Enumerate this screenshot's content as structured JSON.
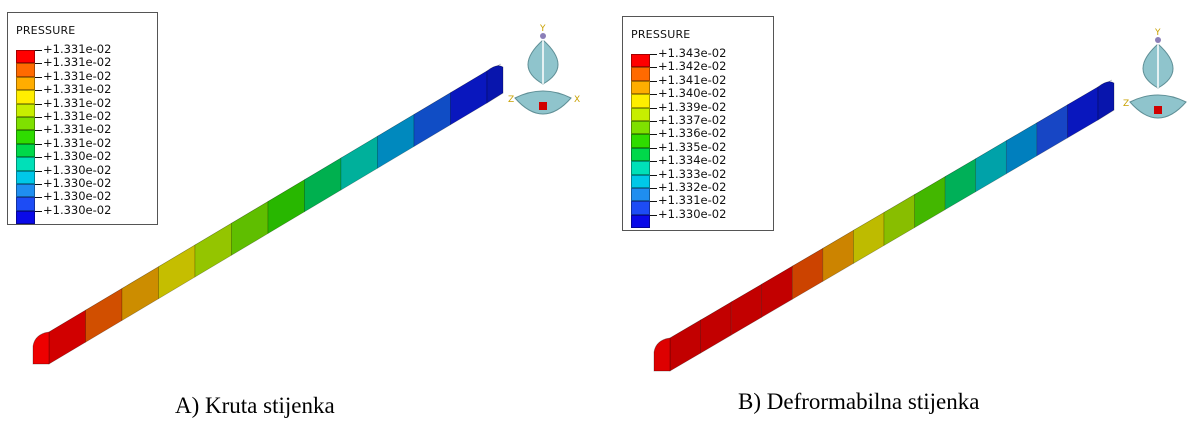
{
  "panels": [
    {
      "id": "a",
      "legend": {
        "title": "PRESSURE",
        "labels": [
          "+1.331e-02",
          "+1.331e-02",
          "+1.331e-02",
          "+1.331e-02",
          "+1.331e-02",
          "+1.331e-02",
          "+1.331e-02",
          "+1.331e-02",
          "+1.330e-02",
          "+1.330e-02",
          "+1.330e-02",
          "+1.330e-02",
          "+1.330e-02"
        ],
        "colors": [
          "#ff0000",
          "#ff6a00",
          "#ffad00",
          "#ffee00",
          "#c7ee00",
          "#7fe000",
          "#2fdc00",
          "#00d84a",
          "#00e0b8",
          "#00c8e8",
          "#1f8ef0",
          "#1d4cf5",
          "#0a0ae8"
        ]
      },
      "beam_colors": [
        "#ee0000",
        "#ee5a00",
        "#e8a000",
        "#e0d800",
        "#a8e000",
        "#6cd800",
        "#2ed000",
        "#00c85a",
        "#00c8b0",
        "#009cd8",
        "#1258e0",
        "#0a1ad8"
      ],
      "triad": {
        "y": "Y",
        "z": "Z",
        "x": "X"
      },
      "caption": "A) Kruta stijenka"
    },
    {
      "id": "b",
      "legend": {
        "title": "PRESSURE",
        "labels": [
          "+1.343e-02",
          "+1.342e-02",
          "+1.341e-02",
          "+1.340e-02",
          "+1.339e-02",
          "+1.337e-02",
          "+1.336e-02",
          "+1.335e-02",
          "+1.334e-02",
          "+1.333e-02",
          "+1.332e-02",
          "+1.331e-02",
          "+1.330e-02"
        ],
        "colors": [
          "#ff0000",
          "#ff6a00",
          "#ffad00",
          "#ffee00",
          "#c7ee00",
          "#7fe000",
          "#2fdc00",
          "#00d84a",
          "#00e0b8",
          "#00c8e8",
          "#1f8ef0",
          "#1d4cf5",
          "#0a0ae8"
        ]
      },
      "beam_colors": [
        "#dd0000",
        "#dd0000",
        "#dd0000",
        "#dd0000",
        "#e84c00",
        "#e89600",
        "#d8d400",
        "#9ad800",
        "#4cd000",
        "#00c864",
        "#00b8c0",
        "#0090d8",
        "#1a50e0",
        "#0a1ad8"
      ],
      "triad": {
        "y": "Y",
        "z": "Z",
        "x": ""
      },
      "caption": "B) Defrormabilna stijenka"
    }
  ]
}
